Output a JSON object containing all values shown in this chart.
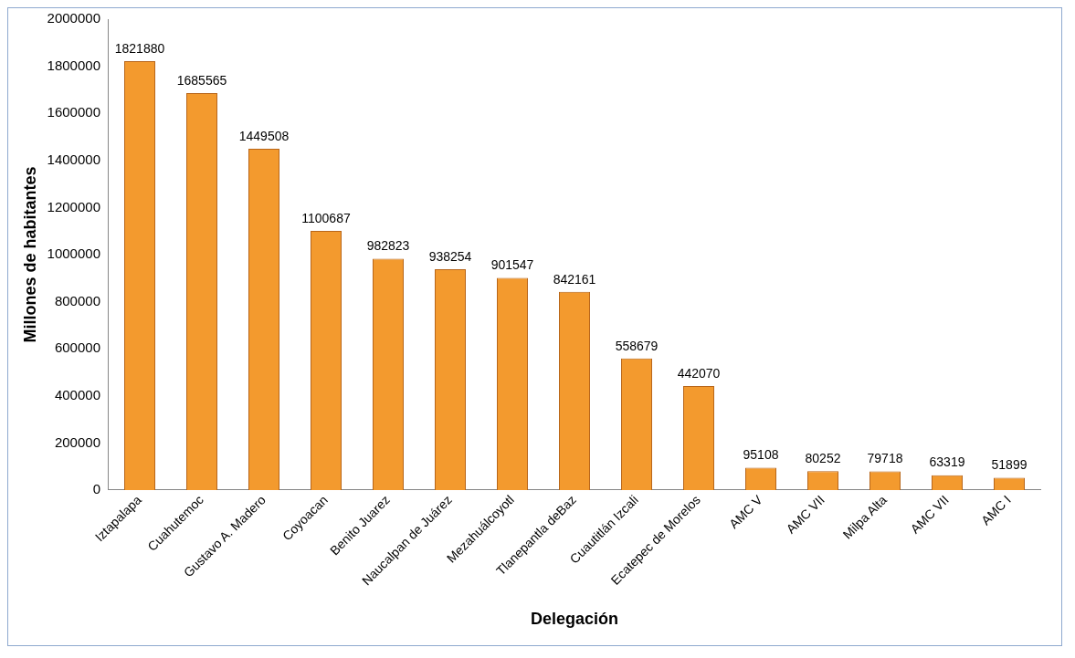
{
  "chart_data": {
    "type": "bar",
    "xlabel": "Delegación",
    "ylabel": "Millones de habitantes",
    "categories": [
      "Iztapalapa",
      "Cuahutemoc",
      "Gustavo A. Madero",
      "Coyoacan",
      "Benito Juarez",
      "Naucalpan de Juárez",
      "Mezahuálcoyotl",
      "Tlanepantla deBaz",
      "Cuautitlán Izcali",
      "Ecatepec de Morelos",
      "AMC V",
      "AMC VII",
      "Milpa Alta",
      "AMC VII",
      "AMC I"
    ],
    "values": [
      1821880,
      1685565,
      1449508,
      1100687,
      982823,
      938254,
      901547,
      842161,
      558679,
      442070,
      95108,
      80252,
      79718,
      63319,
      51899
    ],
    "color": "#f39a2e",
    "ylim": [
      0,
      2000000
    ],
    "yticks": [
      0,
      200000,
      400000,
      600000,
      800000,
      1000000,
      1200000,
      1400000,
      1600000,
      1800000,
      2000000
    ],
    "grid": false,
    "legend": false,
    "data_labels": true
  }
}
